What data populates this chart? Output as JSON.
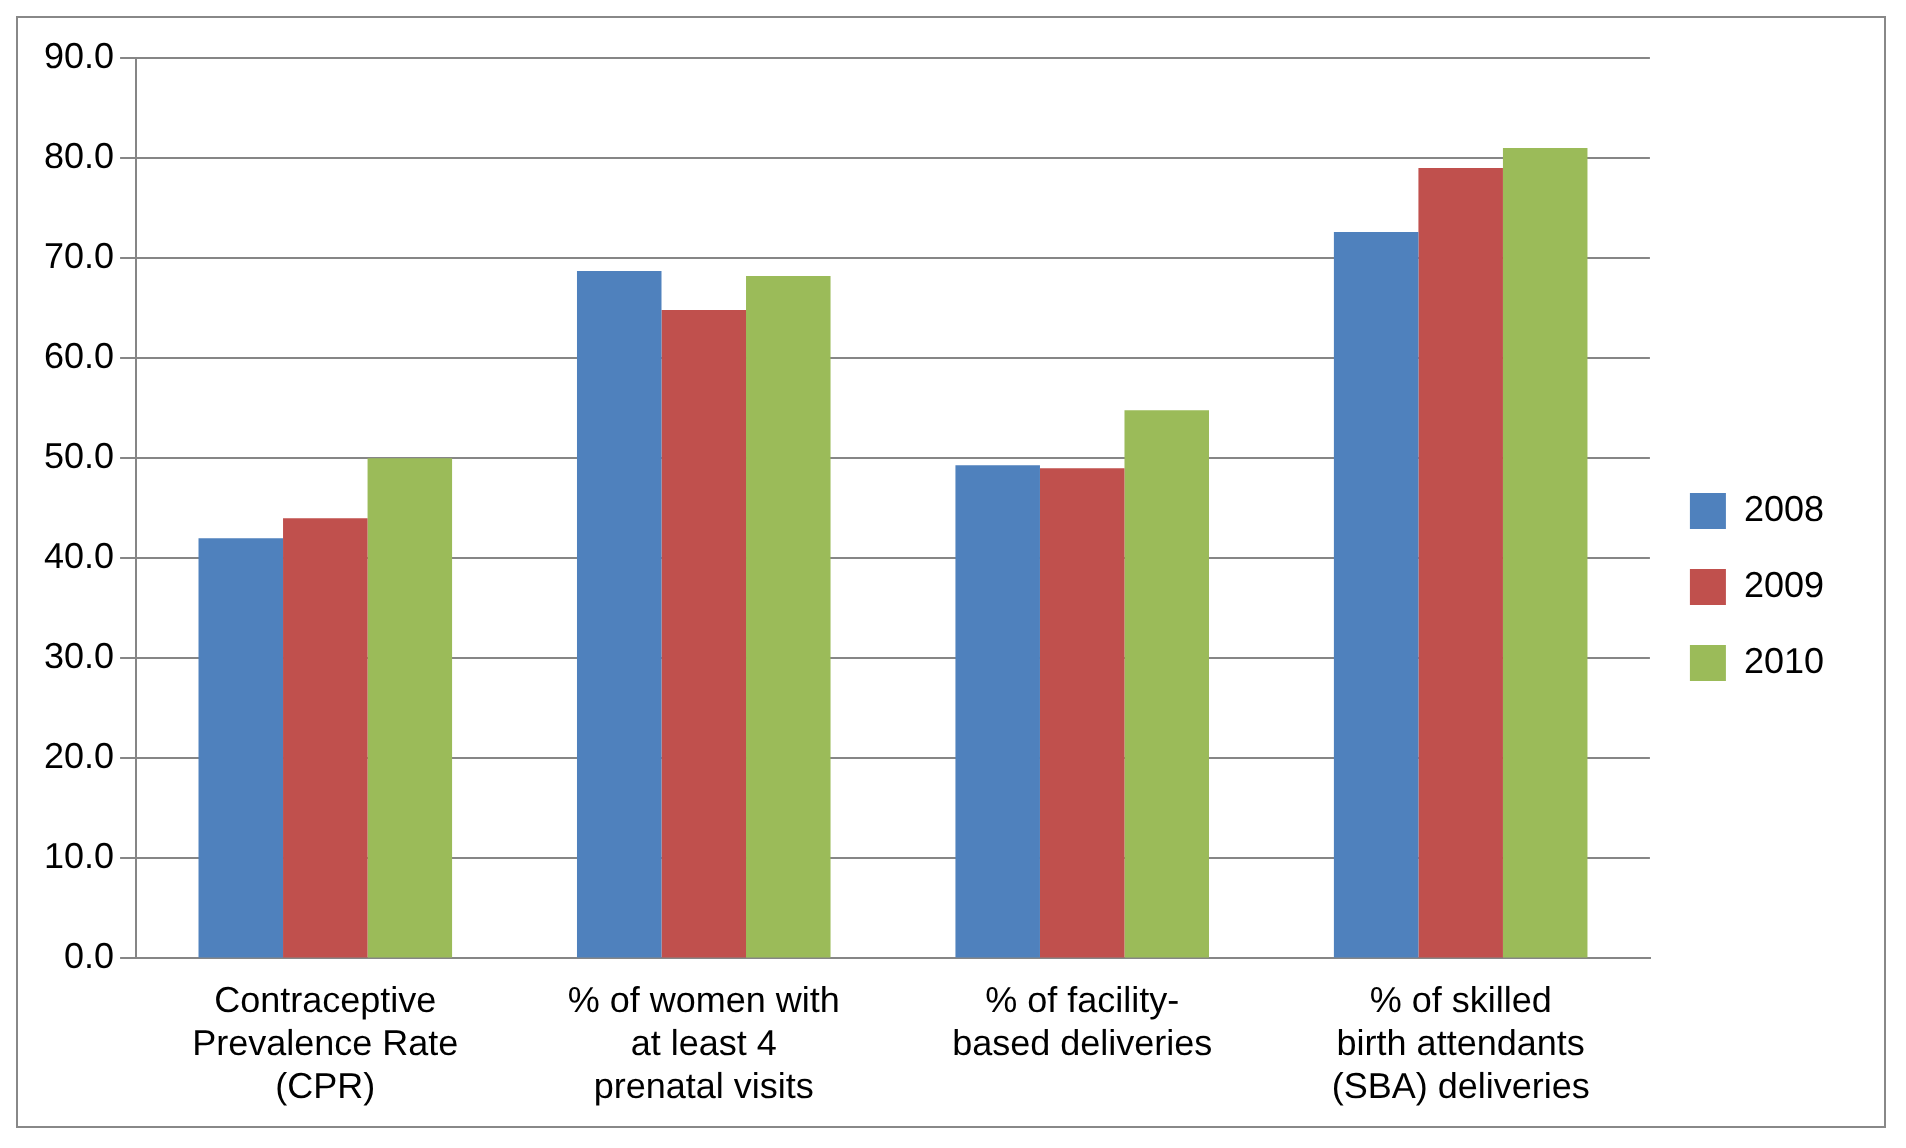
{
  "chart_data": {
    "type": "bar",
    "categories": [
      "Contraceptive Prevalence Rate (CPR)",
      "% of women with at least 4 prenatal visits",
      "% of facility-based deliveries",
      "% of skilled birth attendants (SBA) deliveries"
    ],
    "series": [
      {
        "name": "2008",
        "color": "#4f81bd",
        "values": [
          42.0,
          68.7,
          49.3,
          72.6
        ]
      },
      {
        "name": "2009",
        "color": "#c0504d",
        "values": [
          44.0,
          64.8,
          49.0,
          79.0
        ]
      },
      {
        "name": "2010",
        "color": "#9bbb59",
        "values": [
          50.0,
          68.2,
          54.8,
          81.0
        ]
      }
    ],
    "ylim": [
      0,
      90
    ],
    "yticks": [
      {
        "value": 0,
        "label": "0.0"
      },
      {
        "value": 10,
        "label": "10.0"
      },
      {
        "value": 20,
        "label": "20.0"
      },
      {
        "value": 30,
        "label": "30.0"
      },
      {
        "value": 40,
        "label": "40.0"
      },
      {
        "value": 50,
        "label": "50.0"
      },
      {
        "value": 60,
        "label": "60.0"
      },
      {
        "value": 70,
        "label": "70.0"
      },
      {
        "value": 80,
        "label": "80.0"
      },
      {
        "value": 90,
        "label": "90.0"
      }
    ],
    "grid": "y",
    "legend": "right"
  }
}
